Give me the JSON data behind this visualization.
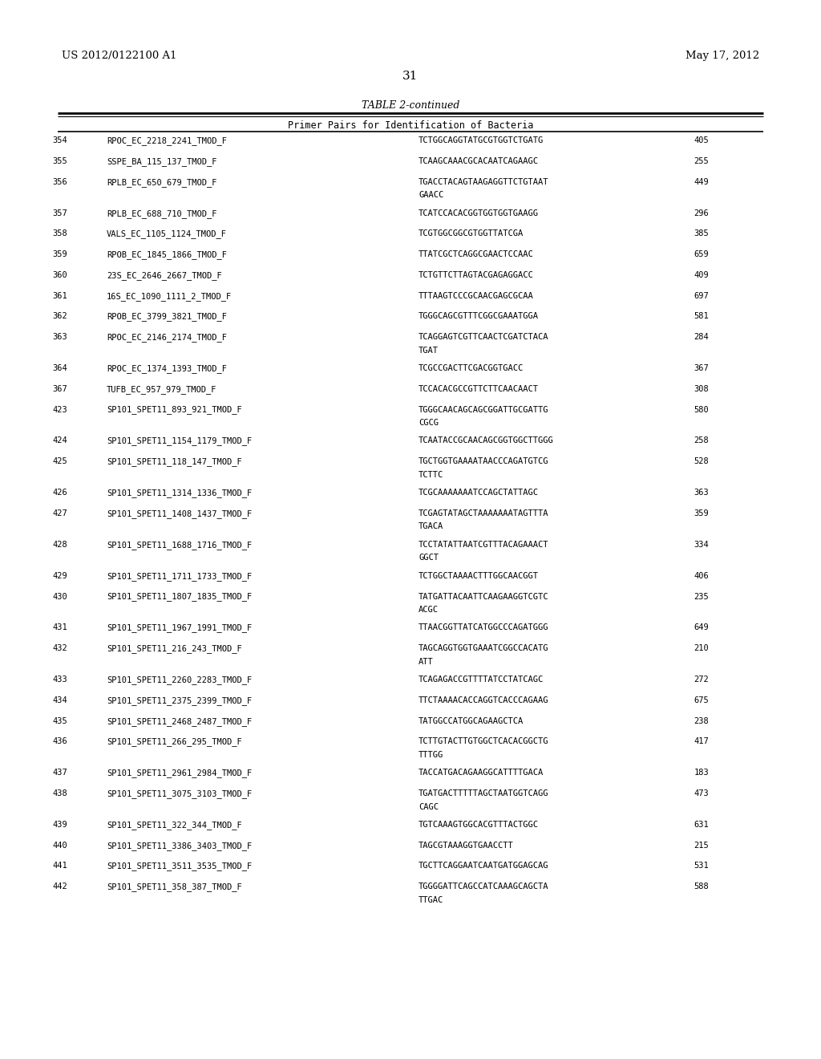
{
  "header_left": "US 2012/0122100 A1",
  "header_right": "May 17, 2012",
  "page_number": "31",
  "table_title": "TABLE 2-continued",
  "table_subtitle": "Primer Pairs for Identification of Bacteria",
  "background_color": "#ffffff",
  "rows": [
    [
      "354",
      "RPOC_EC_2218_2241_TMOD_F",
      "TCTGGCAGGTATGCGTGGTCTGATG",
      "405"
    ],
    [
      "355",
      "SSPE_BA_115_137_TMOD_F",
      "TCAAGCAAACGCACAATCAGAAGC",
      "255"
    ],
    [
      "356",
      "RPLB_EC_650_679_TMOD_F",
      "TGACCTACAGTAAGAGGTTCTGTAAT\nGAACC",
      "449"
    ],
    [
      "357",
      "RPLB_EC_688_710_TMOD_F",
      "TCATCCACACGGTGGTGGTGAAGG",
      "296"
    ],
    [
      "358",
      "VALS_EC_1105_1124_TMOD_F",
      "TCGTGGCGGCGTGGTTATCGA",
      "385"
    ],
    [
      "359",
      "RPOB_EC_1845_1866_TMOD_F",
      "TTATCGCTCAGGCGAACTCCAAC",
      "659"
    ],
    [
      "360",
      "23S_EC_2646_2667_TMOD_F",
      "TCTGTTCTTAGTACGAGAGGACC",
      "409"
    ],
    [
      "361",
      "16S_EC_1090_1111_2_TMOD_F",
      "TTTAAGTCCCGCAACGAGCGCAA",
      "697"
    ],
    [
      "362",
      "RPOB_EC_3799_3821_TMOD_F",
      "TGGGCAGCGTTTCGGCGAAATGGA",
      "581"
    ],
    [
      "363",
      "RPOC_EC_2146_2174_TMOD_F",
      "TCAGGAGTCGTTCAACTCGATCTACA\nTGAT",
      "284"
    ],
    [
      "364",
      "RPOC_EC_1374_1393_TMOD_F",
      "TCGCCGACTTCGACGGTGACC",
      "367"
    ],
    [
      "367",
      "TUFB_EC_957_979_TMOD_F",
      "TCCACACGCCGTTCTTCAACAACT",
      "308"
    ],
    [
      "423",
      "SP101_SPET11_893_921_TMOD_F",
      "TGGGCAACAGCAGCGGATTGCGATTG\nCGCG",
      "580"
    ],
    [
      "424",
      "SP101_SPET11_1154_1179_TMOD_F",
      "TCAATACCGCAACAGCGGTGGCTTGGG",
      "258"
    ],
    [
      "425",
      "SP101_SPET11_118_147_TMOD_F",
      "TGCTGGTGAAAATAACCCAGATGTCG\nTCTTC",
      "528"
    ],
    [
      "426",
      "SP101_SPET11_1314_1336_TMOD_F",
      "TCGCAAAAAAATCCAGCTATTAGC",
      "363"
    ],
    [
      "427",
      "SP101_SPET11_1408_1437_TMOD_F",
      "TCGAGTATAGCTAAAAAAATAGTTTA\nTGACA",
      "359"
    ],
    [
      "428",
      "SP101_SPET11_1688_1716_TMOD_F",
      "TCCTATATTAATCGTTTACAGAAACT\nGGCT",
      "334"
    ],
    [
      "429",
      "SP101_SPET11_1711_1733_TMOD_F",
      "TCTGGCTAAAACTTTGGCAACGGT",
      "406"
    ],
    [
      "430",
      "SP101_SPET11_1807_1835_TMOD_F",
      "TATGATTACAATTCAAGAAGGTCGTC\nACGC",
      "235"
    ],
    [
      "431",
      "SP101_SPET11_1967_1991_TMOD_F",
      "TTAACGGTTATCATGGCCCAGATGGG",
      "649"
    ],
    [
      "432",
      "SP101_SPET11_216_243_TMOD_F",
      "TAGCAGGTGGTGAAATCGGCCACATG\nATT",
      "210"
    ],
    [
      "433",
      "SP101_SPET11_2260_2283_TMOD_F",
      "TCAGAGACCGTTTTATCCTATCAGC",
      "272"
    ],
    [
      "434",
      "SP101_SPET11_2375_2399_TMOD_F",
      "TTCTAAAACACCAGGTCACCCAGAAG",
      "675"
    ],
    [
      "435",
      "SP101_SPET11_2468_2487_TMOD_F",
      "TATGGCCATGGCAGAAGCTCA",
      "238"
    ],
    [
      "436",
      "SP101_SPET11_266_295_TMOD_F",
      "TCTTGTACTTGTGGCTCACACGGCTG\nTTTGG",
      "417"
    ],
    [
      "437",
      "SP101_SPET11_2961_2984_TMOD_F",
      "TACCATGACAGAAGGCATTTTGACA",
      "183"
    ],
    [
      "438",
      "SP101_SPET11_3075_3103_TMOD_F",
      "TGATGACTTTTTAGCTAATGGTCAGG\nCAGC",
      "473"
    ],
    [
      "439",
      "SP101_SPET11_322_344_TMOD_F",
      "TGTCAAAGTGGCACGTTTACTGGC",
      "631"
    ],
    [
      "440",
      "SP101_SPET11_3386_3403_TMOD_F",
      "TAGCGTAAAGGTGAACCTT",
      "215"
    ],
    [
      "441",
      "SP101_SPET11_3511_3535_TMOD_F",
      "TGCTTCAGGAATCAATGATGGAGCAG",
      "531"
    ],
    [
      "442",
      "SP101_SPET11_358_387_TMOD_F",
      "TGGGGATTCAGCCATCAAAGCAGCTA\nTTGAC",
      "588"
    ]
  ]
}
